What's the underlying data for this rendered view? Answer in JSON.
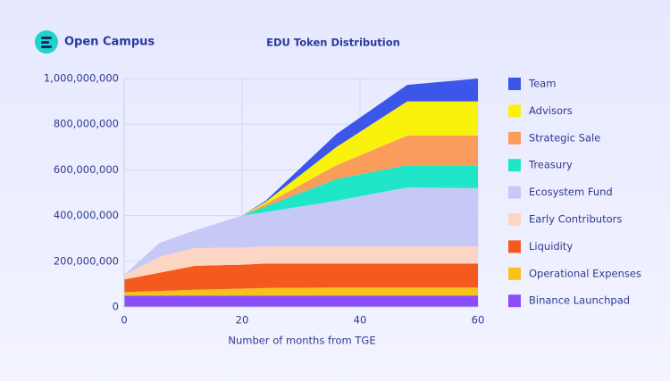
{
  "header": {
    "brand": "Open Campus"
  },
  "chart_data": {
    "type": "stacked-area",
    "title": "EDU Token Distribution",
    "x_label": "Number of months from TGE",
    "x": [
      0,
      6,
      12,
      20,
      24,
      36,
      48,
      60
    ],
    "xlim": [
      0,
      60
    ],
    "xticks": [
      0,
      20,
      40,
      60
    ],
    "ylim": [
      0,
      1000000000
    ],
    "yticks": [
      0,
      {
        "value": 200000000,
        "label": "200,000,000"
      },
      {
        "value": 400000000,
        "label": "400,000,000"
      },
      {
        "value": 600000000,
        "label": "600,000,000"
      },
      {
        "value": 800000000,
        "label": "800,000,000"
      },
      {
        "value": 1000000000,
        "label": "1,000,000,000"
      }
    ],
    "grid": true,
    "legend": "right",
    "series": [
      {
        "name": "Binance Launchpad",
        "color": "#8b4dfa",
        "values": [
          50000000,
          50000000,
          50000000,
          50000000,
          50000000,
          50000000,
          50000000,
          50000000
        ]
      },
      {
        "name": "Operational Expenses",
        "color": "#f7c21c",
        "values": [
          15000000,
          20000000,
          25000000,
          30000000,
          33000000,
          35000000,
          35000000,
          35000000
        ]
      },
      {
        "name": "Liquidity",
        "color": "#f45a1e",
        "values": [
          55000000,
          80000000,
          105000000,
          105000000,
          107000000,
          105000000,
          105000000,
          105000000
        ]
      },
      {
        "name": "Early Contributors",
        "color": "#fdd6c3",
        "values": [
          20000000,
          70000000,
          78000000,
          75000000,
          75000000,
          75000000,
          75000000,
          75000000
        ]
      },
      {
        "name": "Ecosystem Fund",
        "color": "#c6c9f6",
        "values": [
          0,
          61000000,
          77000000,
          140000000,
          150000000,
          200000000,
          258000000,
          255000000
        ]
      },
      {
        "name": "Treasury",
        "color": "#1fe6c9",
        "values": [
          0,
          0,
          0,
          0,
          25000000,
          95000000,
          97000000,
          100000000
        ]
      },
      {
        "name": "Strategic Sale",
        "color": "#f99c5c",
        "values": [
          0,
          0,
          0,
          0,
          10000000,
          60000000,
          130000000,
          130000000
        ]
      },
      {
        "name": "Advisors",
        "color": "#f8f20c",
        "values": [
          0,
          0,
          0,
          0,
          10000000,
          80000000,
          150000000,
          150000000
        ]
      },
      {
        "name": "Team",
        "color": "#3c56ea",
        "values": [
          0,
          0,
          0,
          0,
          5000000,
          57000000,
          72000000,
          100000000
        ]
      }
    ]
  }
}
